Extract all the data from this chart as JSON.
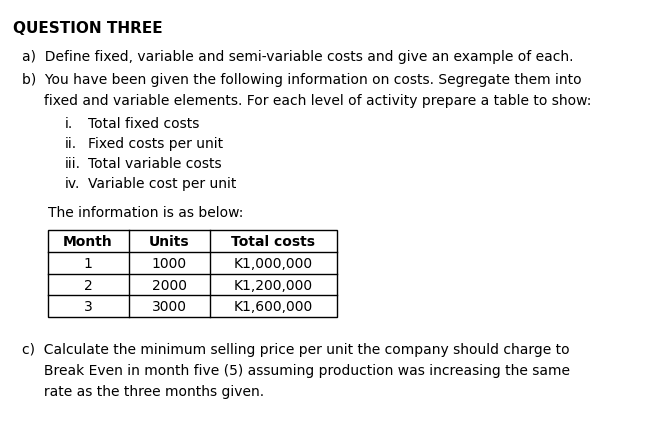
{
  "title": "QUESTION THREE",
  "bg_color": "#ffffff",
  "text_color": "#000000",
  "title_fontsize": 11,
  "body_fontsize": 10,
  "section_a": "a)  Define fixed, variable and semi-variable costs and give an example of each.",
  "section_b_line1": "b)  You have been given the following information on costs. Segregate them into",
  "section_b_line2": "     fixed and variable elements. For each level of activity prepare a table to show:",
  "sub_items": [
    [
      "i.",
      "Total fixed costs"
    ],
    [
      "ii.",
      "Fixed costs per unit"
    ],
    [
      "iii.",
      "Total variable costs"
    ],
    [
      "iv.",
      "Variable cost per unit"
    ]
  ],
  "info_label": "The information is as below:",
  "table_headers": [
    "Month",
    "Units",
    "Total costs"
  ],
  "table_rows": [
    [
      "1",
      "1000",
      "K1,000,000"
    ],
    [
      "2",
      "2000",
      "K1,200,000"
    ],
    [
      "3",
      "3000",
      "K1,600,000"
    ]
  ],
  "section_c_line1": "c)  Calculate the minimum selling price per unit the company should charge to",
  "section_c_line2": "     Break Even in month five (5) assuming production was increasing the same",
  "section_c_line3": "     rate as the three months given."
}
